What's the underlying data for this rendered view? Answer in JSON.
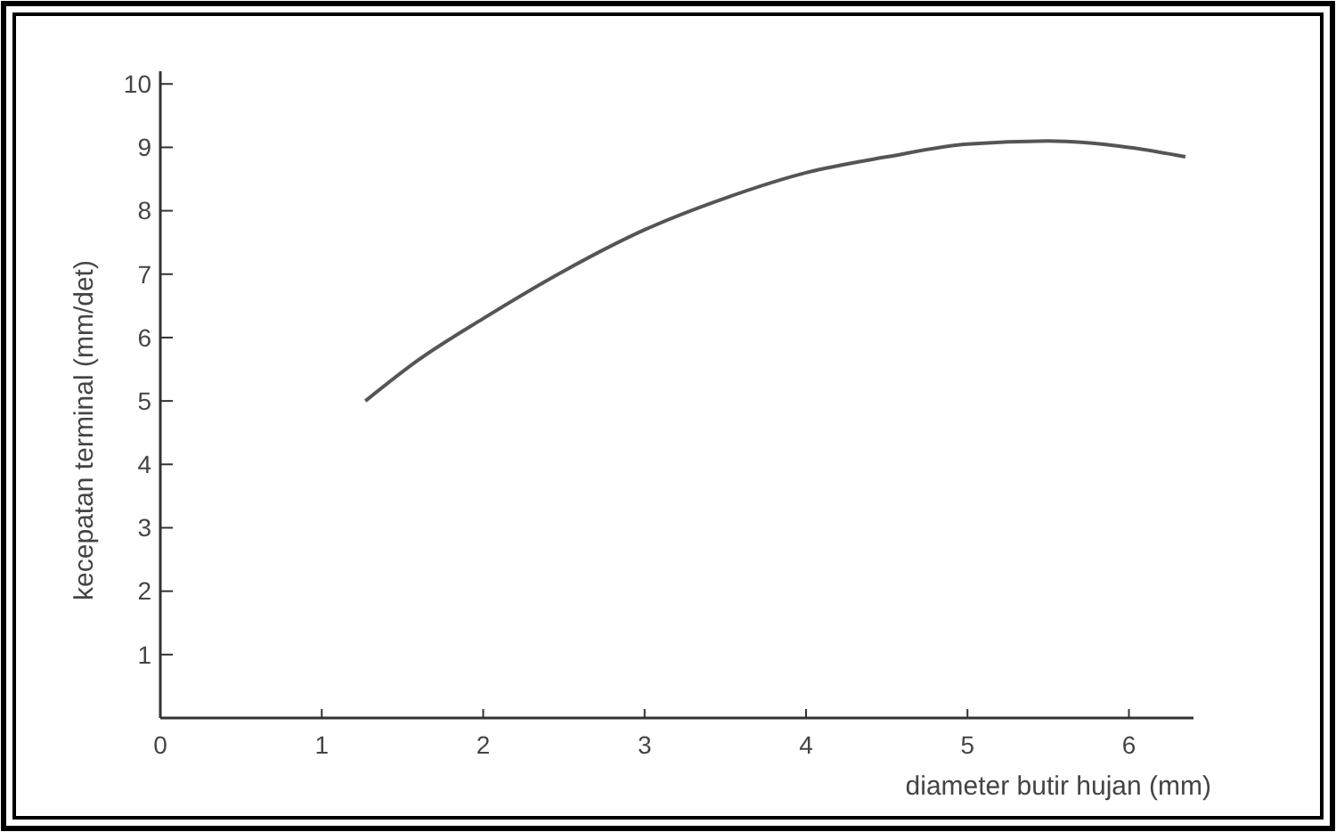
{
  "chart_data": {
    "type": "line",
    "xlabel": "diameter butir hujan (mm)",
    "ylabel": "kecepatan terminal (mm/det)",
    "x": [
      1.27,
      1.6,
      2,
      2.5,
      3,
      3.5,
      4,
      4.5,
      5,
      5.5,
      6,
      6.35
    ],
    "series": [
      {
        "color": "#555555",
        "values": [
          5.0,
          5.65,
          6.3,
          7.05,
          7.7,
          8.2,
          8.6,
          8.85,
          9.05,
          9.1,
          9.0,
          8.85
        ]
      }
    ],
    "xlim": [
      0,
      6.4
    ],
    "xticks": [
      0,
      1,
      2,
      3,
      4,
      5,
      6
    ],
    "ylim": [
      0,
      10.2
    ],
    "yticks": [
      {
        "value": 0,
        "label": null
      },
      1,
      2,
      3,
      4,
      5,
      6,
      7,
      8,
      9,
      10
    ],
    "grid": false
  }
}
